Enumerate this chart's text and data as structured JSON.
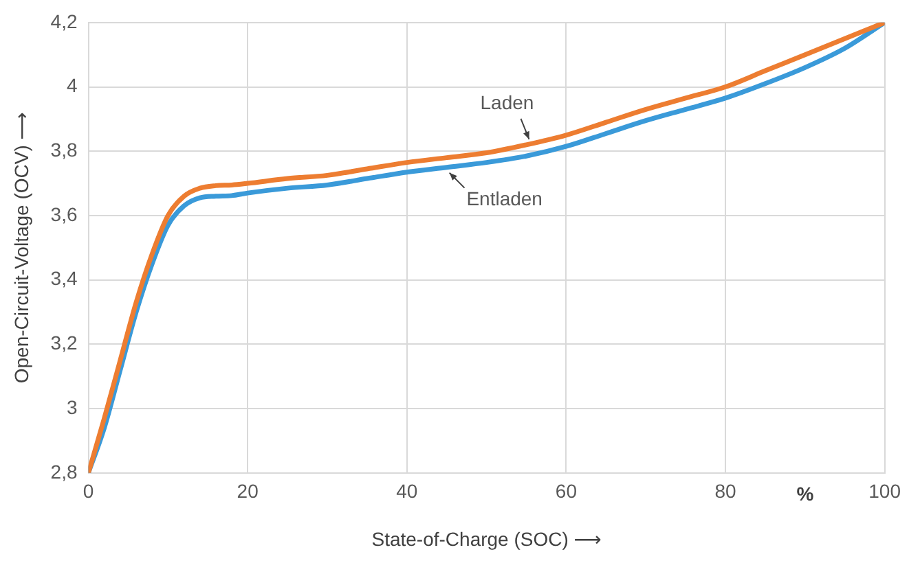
{
  "chart_data": {
    "type": "line",
    "xlabel": "State-of-Charge (SOC) ⟶",
    "ylabel": "Open-Circuit-Voltage (OCV) ⟶",
    "annotations": [
      "%"
    ],
    "x": [
      0,
      2,
      4,
      6,
      8,
      10,
      12,
      14,
      16,
      18,
      20,
      25,
      30,
      35,
      40,
      45,
      50,
      55,
      60,
      65,
      70,
      75,
      80,
      85,
      90,
      95,
      100
    ],
    "series": [
      {
        "name": "Laden",
        "color": "#ed7d31",
        "values": [
          2.8,
          2.97,
          3.15,
          3.33,
          3.48,
          3.6,
          3.66,
          3.685,
          3.693,
          3.695,
          3.7,
          3.715,
          3.725,
          3.745,
          3.765,
          3.78,
          3.795,
          3.82,
          3.85,
          3.89,
          3.93,
          3.965,
          4.0,
          4.05,
          4.1,
          4.15,
          4.2
        ]
      },
      {
        "name": "Entladen",
        "color": "#3a9ad9",
        "values": [
          2.8,
          2.94,
          3.12,
          3.3,
          3.45,
          3.57,
          3.63,
          3.655,
          3.66,
          3.662,
          3.67,
          3.685,
          3.695,
          3.715,
          3.735,
          3.75,
          3.765,
          3.785,
          3.815,
          3.855,
          3.895,
          3.93,
          3.965,
          4.01,
          4.06,
          4.12,
          4.2
        ]
      }
    ],
    "xlim": [
      0,
      100
    ],
    "xticks": [
      0,
      20,
      40,
      60,
      80,
      100
    ],
    "ylim": [
      2.8,
      4.2
    ],
    "yticks": [
      {
        "value": 2.8,
        "label": "2,8"
      },
      {
        "value": 3,
        "label": "3"
      },
      {
        "value": 3.2,
        "label": "3,2"
      },
      {
        "value": 3.4,
        "label": "3,4"
      },
      {
        "value": 3.6,
        "label": "3,6"
      },
      {
        "value": 3.8,
        "label": "3,8"
      },
      {
        "value": 4,
        "label": "4"
      },
      {
        "value": 4.2,
        "label": "4,2"
      }
    ],
    "grid": true,
    "legend": false,
    "marker": "none",
    "line_style": "solid"
  }
}
